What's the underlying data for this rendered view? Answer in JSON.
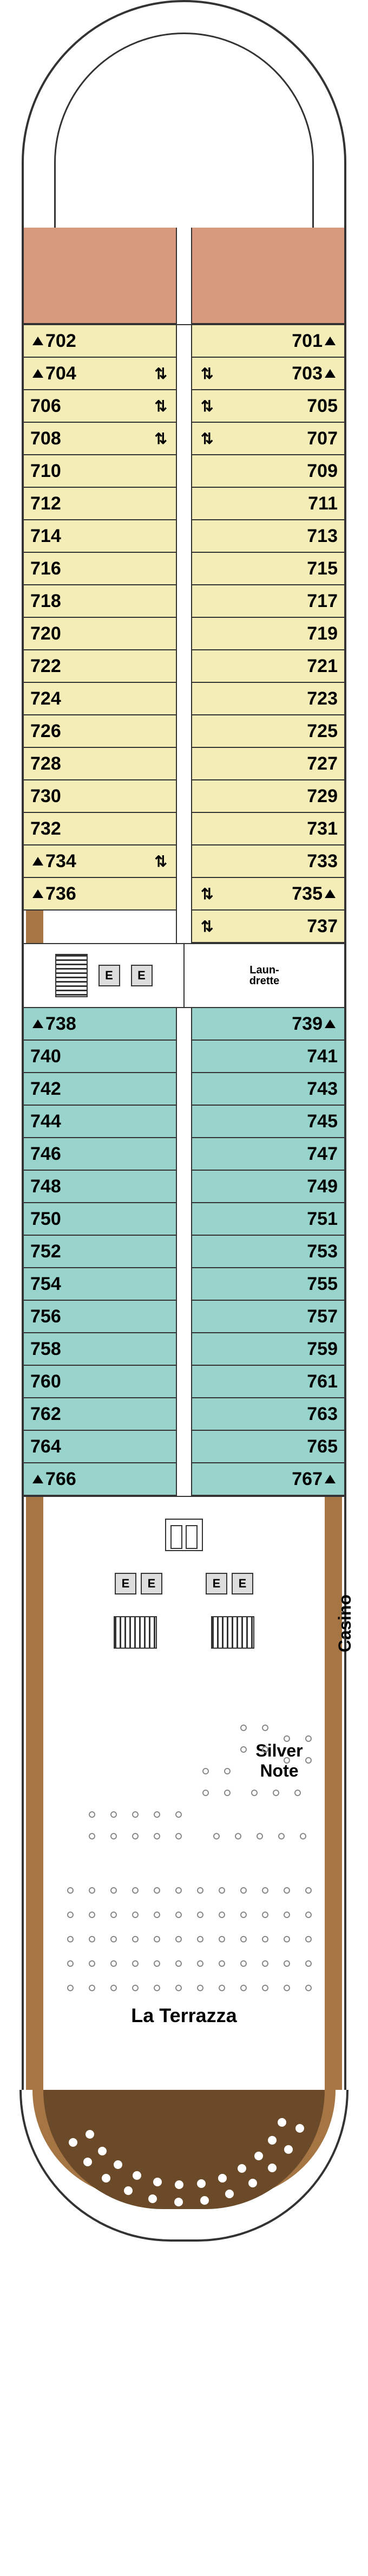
{
  "colors": {
    "salmon": "#d89a7f",
    "yellow": "#f4edb8",
    "teal": "#98d4cc",
    "brown": "#a67544",
    "dark_brown": "#6b4a2a",
    "white": "#ffffff",
    "outline": "#333333",
    "grey": "#cccccc"
  },
  "forward_suites": {
    "port_top_color": "#d89a7f",
    "stbd_top_color": "#d89a7f",
    "port_bot_color": "#a67544",
    "stbd_bot_color": "#a67544"
  },
  "cabins_yellow": {
    "color": "#f4edb8",
    "port": [
      {
        "num": "702",
        "tri": true,
        "arrows": false
      },
      {
        "num": "704",
        "tri": true,
        "arrows": true
      },
      {
        "num": "706",
        "tri": false,
        "arrows": true
      },
      {
        "num": "708",
        "tri": false,
        "arrows": true
      },
      {
        "num": "710",
        "tri": false,
        "arrows": false
      },
      {
        "num": "712",
        "tri": false,
        "arrows": false
      },
      {
        "num": "714",
        "tri": false,
        "arrows": false
      },
      {
        "num": "716",
        "tri": false,
        "arrows": false
      },
      {
        "num": "718",
        "tri": false,
        "arrows": false
      },
      {
        "num": "720",
        "tri": false,
        "arrows": false
      },
      {
        "num": "722",
        "tri": false,
        "arrows": false
      },
      {
        "num": "724",
        "tri": false,
        "arrows": false
      },
      {
        "num": "726",
        "tri": false,
        "arrows": false
      },
      {
        "num": "728",
        "tri": false,
        "arrows": false
      },
      {
        "num": "730",
        "tri": false,
        "arrows": false
      },
      {
        "num": "732",
        "tri": false,
        "arrows": false
      },
      {
        "num": "734",
        "tri": true,
        "arrows": true
      },
      {
        "num": "736",
        "tri": true,
        "arrows": false
      }
    ],
    "stbd": [
      {
        "num": "701",
        "tri": true,
        "arrows": false
      },
      {
        "num": "703",
        "tri": true,
        "arrows": true
      },
      {
        "num": "705",
        "tri": false,
        "arrows": true
      },
      {
        "num": "707",
        "tri": false,
        "arrows": true
      },
      {
        "num": "709",
        "tri": false,
        "arrows": false
      },
      {
        "num": "711",
        "tri": false,
        "arrows": false
      },
      {
        "num": "713",
        "tri": false,
        "arrows": false
      },
      {
        "num": "715",
        "tri": false,
        "arrows": false
      },
      {
        "num": "717",
        "tri": false,
        "arrows": false
      },
      {
        "num": "719",
        "tri": false,
        "arrows": false
      },
      {
        "num": "721",
        "tri": false,
        "arrows": false
      },
      {
        "num": "723",
        "tri": false,
        "arrows": false
      },
      {
        "num": "725",
        "tri": false,
        "arrows": false
      },
      {
        "num": "727",
        "tri": false,
        "arrows": false
      },
      {
        "num": "729",
        "tri": false,
        "arrows": false
      },
      {
        "num": "731",
        "tri": false,
        "arrows": false
      },
      {
        "num": "733",
        "tri": false,
        "arrows": false
      },
      {
        "num": "735",
        "tri": true,
        "arrows": true
      },
      {
        "num": "737",
        "tri": false,
        "arrows": true
      }
    ]
  },
  "midship": {
    "elevator_label": "E",
    "laundrette_label": "Laun-\ndrette"
  },
  "cabins_teal": {
    "color": "#98d4cc",
    "port": [
      {
        "num": "738",
        "tri": true,
        "arrows": false
      },
      {
        "num": "740",
        "tri": false,
        "arrows": false
      },
      {
        "num": "742",
        "tri": false,
        "arrows": false
      },
      {
        "num": "744",
        "tri": false,
        "arrows": false
      },
      {
        "num": "746",
        "tri": false,
        "arrows": false
      },
      {
        "num": "748",
        "tri": false,
        "arrows": false
      },
      {
        "num": "750",
        "tri": false,
        "arrows": false
      },
      {
        "num": "752",
        "tri": false,
        "arrows": false
      },
      {
        "num": "754",
        "tri": false,
        "arrows": false
      },
      {
        "num": "756",
        "tri": false,
        "arrows": false
      },
      {
        "num": "758",
        "tri": false,
        "arrows": false
      },
      {
        "num": "760",
        "tri": false,
        "arrows": false
      },
      {
        "num": "762",
        "tri": false,
        "arrows": false
      },
      {
        "num": "764",
        "tri": false,
        "arrows": false
      },
      {
        "num": "766",
        "tri": true,
        "arrows": false
      }
    ],
    "stbd": [
      {
        "num": "739",
        "tri": true,
        "arrows": false
      },
      {
        "num": "741",
        "tri": false,
        "arrows": false
      },
      {
        "num": "743",
        "tri": false,
        "arrows": false
      },
      {
        "num": "745",
        "tri": false,
        "arrows": false
      },
      {
        "num": "747",
        "tri": false,
        "arrows": false
      },
      {
        "num": "749",
        "tri": false,
        "arrows": false
      },
      {
        "num": "751",
        "tri": false,
        "arrows": false
      },
      {
        "num": "753",
        "tri": false,
        "arrows": false
      },
      {
        "num": "755",
        "tri": false,
        "arrows": false
      },
      {
        "num": "757",
        "tri": false,
        "arrows": false
      },
      {
        "num": "759",
        "tri": false,
        "arrows": false
      },
      {
        "num": "761",
        "tri": false,
        "arrows": false
      },
      {
        "num": "763",
        "tri": false,
        "arrows": false
      },
      {
        "num": "765",
        "tri": false,
        "arrows": false
      },
      {
        "num": "767",
        "tri": true,
        "arrows": false
      }
    ]
  },
  "aft_venues": {
    "casino": "Casino",
    "silver_note": "Silver\nNote",
    "la_terrazza": "La Terrazza",
    "elevator_label": "E"
  },
  "rail_colors": {
    "yellow_band": "#a67544",
    "teal_band": "#a67544",
    "aft_band": "#a67544"
  }
}
